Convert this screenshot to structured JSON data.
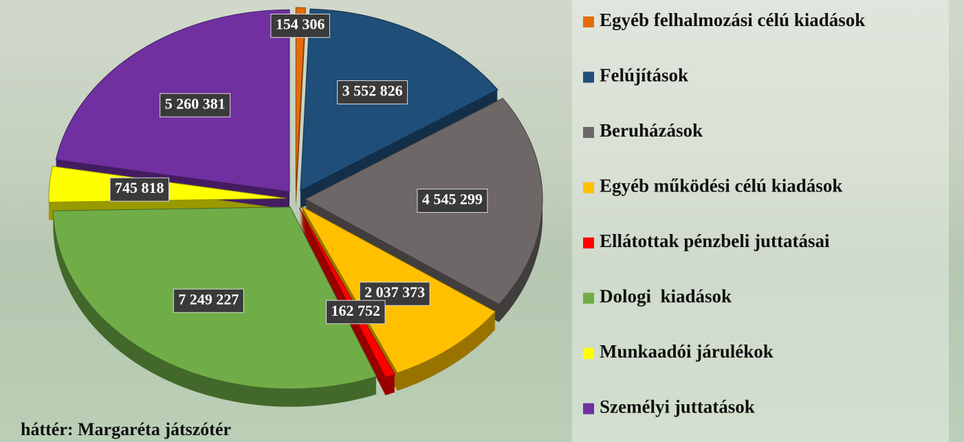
{
  "chart_data": {
    "type": "pie",
    "categories": [
      "Egyéb felhalmozási célú kiadások",
      "Felújítások",
      "Beruházások",
      "Egyéb működési célú kiadások",
      "Ellátottak pénzbeli juttatásai",
      "Dologi  kiadások",
      "Munkaadói járulékok",
      "Személyi juttatások"
    ],
    "values": [
      154306,
      3552826,
      4545299,
      2037373,
      162752,
      7249227,
      745818,
      5260381
    ],
    "value_labels": [
      "154 306",
      "3 552 826",
      "4 545 299",
      "2 037 373",
      "162 752",
      "7 249 227",
      "745 818",
      "5 260 381"
    ],
    "colors": [
      "#e46c0a",
      "#1f4e79",
      "#6e6767",
      "#ffc000",
      "#ff0000",
      "#70ad47",
      "#ffff00",
      "#7030a0"
    ],
    "legend": "right",
    "caption": "háttér: Margaréta játszótér"
  }
}
